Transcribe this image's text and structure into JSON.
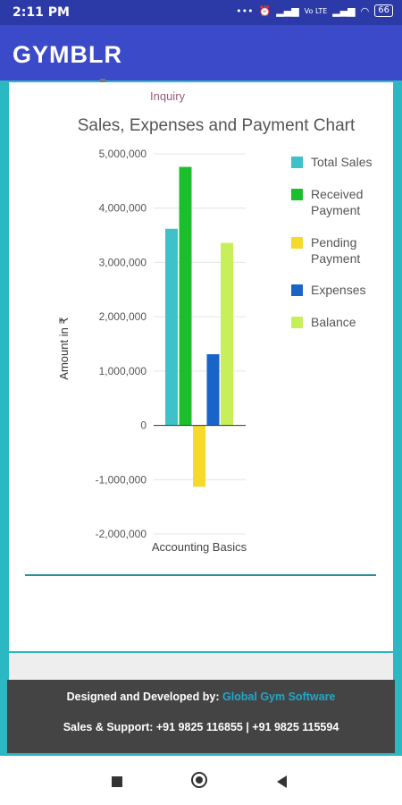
{
  "status_bar": {
    "time": "2:11 PM",
    "icons": [
      "more-dots-icon",
      "alarm-icon",
      "signal-icon",
      "volte-icon",
      "signal-icon",
      "wifi-icon",
      "battery-icon"
    ],
    "volte_label": "Vo LTE",
    "dots": "•••",
    "battery": "66"
  },
  "app_bar": {
    "title": "GYMBLR"
  },
  "content": {
    "inquiry_label": "Inquiry"
  },
  "chart_data": {
    "type": "bar",
    "title": "Sales, Expenses and Payment Chart",
    "xlabel": "Accounting Basics",
    "ylabel": "Amount in ₹",
    "categories": [
      "Accounting Basics"
    ],
    "ylim": [
      -2000000,
      5000000
    ],
    "yticks": [
      -2000000,
      -1000000,
      0,
      1000000,
      2000000,
      3000000,
      4000000,
      5000000
    ],
    "ytick_labels": [
      "-2,000,000",
      "-1,000,000",
      "0",
      "1,000,000",
      "2,000,000",
      "3,000,000",
      "4,000,000",
      "5,000,000"
    ],
    "legend_position": "right",
    "series": [
      {
        "name": "Total Sales",
        "legend_lines": [
          "Total Sales"
        ],
        "values": [
          3620000
        ],
        "color": "#3ec1c9"
      },
      {
        "name": "Received Payment",
        "legend_lines": [
          "Received",
          "Payment"
        ],
        "values": [
          4760000
        ],
        "color": "#1bbf2c"
      },
      {
        "name": "Pending Payment",
        "legend_lines": [
          "Pending",
          "Payment"
        ],
        "values": [
          -1130000
        ],
        "color": "#f6d92a"
      },
      {
        "name": "Expenses",
        "legend_lines": [
          "Expenses"
        ],
        "values": [
          1310000
        ],
        "color": "#1a63c9"
      },
      {
        "name": "Balance",
        "legend_lines": [
          "Balance"
        ],
        "values": [
          3360000
        ],
        "color": "#c6ef5a"
      }
    ]
  },
  "footer": {
    "designed_label": "Designed and Developed by:",
    "company": "Global Gym Software",
    "support_label": "Sales & Support: +91 9825 116855 | +91 9825 115594"
  },
  "colors": {
    "status_bar": "#2c3aa8",
    "app_bar": "#3b4ac8",
    "frame": "#2cb8c2",
    "footer_bg": "#444444",
    "link": "#21a7c9"
  }
}
